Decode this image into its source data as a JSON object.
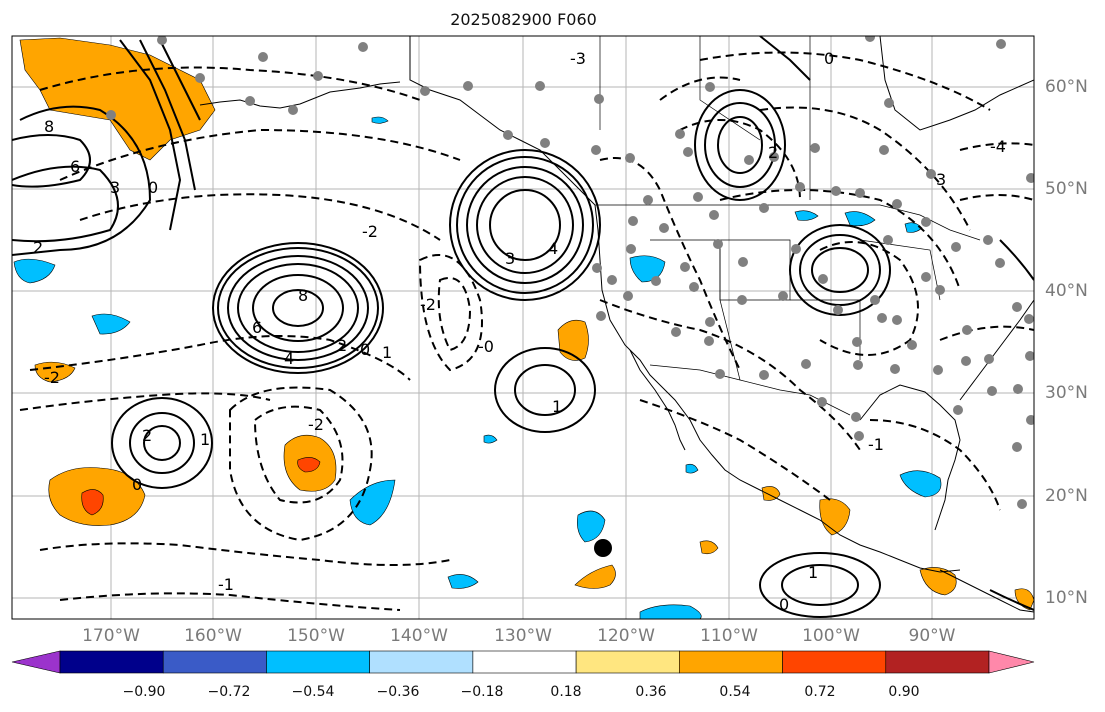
{
  "title": "2025082900 F060",
  "lat_ticks": [
    "60°N",
    "50°N",
    "40°N",
    "30°N",
    "20°N",
    "10°N"
  ],
  "lon_ticks": [
    "170°W",
    "160°W",
    "150°W",
    "140°W",
    "130°W",
    "120°W",
    "110°W",
    "100°W",
    "90°W"
  ],
  "colorbar": {
    "labels": [
      "−0.90",
      "−0.72",
      "−0.54",
      "−0.36",
      "−0.18",
      "0.18",
      "0.36",
      "0.54",
      "0.72",
      "0.90"
    ],
    "colors": [
      "#9b33cc",
      "#00008b",
      "#3a5bc7",
      "#00bfff",
      "#b0e0ff",
      "#ffffff",
      "#ffe680",
      "#ffa500",
      "#ff4500",
      "#b22222",
      "#ff88aa"
    ]
  },
  "contour_labels": [
    {
      "text": "8"
    },
    {
      "text": "6"
    },
    {
      "text": "3"
    },
    {
      "text": "0"
    },
    {
      "text": "2"
    },
    {
      "text": "-2"
    },
    {
      "text": "4"
    },
    {
      "text": "6"
    },
    {
      "text": "8"
    },
    {
      "text": "2"
    },
    {
      "text": "0"
    },
    {
      "text": "1"
    },
    {
      "text": "-2"
    },
    {
      "text": "2"
    },
    {
      "text": "1"
    },
    {
      "text": "3"
    },
    {
      "text": "4"
    },
    {
      "text": "-0"
    },
    {
      "text": "-2"
    },
    {
      "text": "0"
    },
    {
      "text": "1"
    },
    {
      "text": "-1"
    },
    {
      "text": "1"
    },
    {
      "text": "0"
    },
    {
      "text": "-1"
    },
    {
      "text": "-4"
    },
    {
      "text": "3"
    },
    {
      "text": "-3"
    },
    {
      "text": "0"
    },
    {
      "text": "-2"
    },
    {
      "text": "2"
    }
  ]
}
